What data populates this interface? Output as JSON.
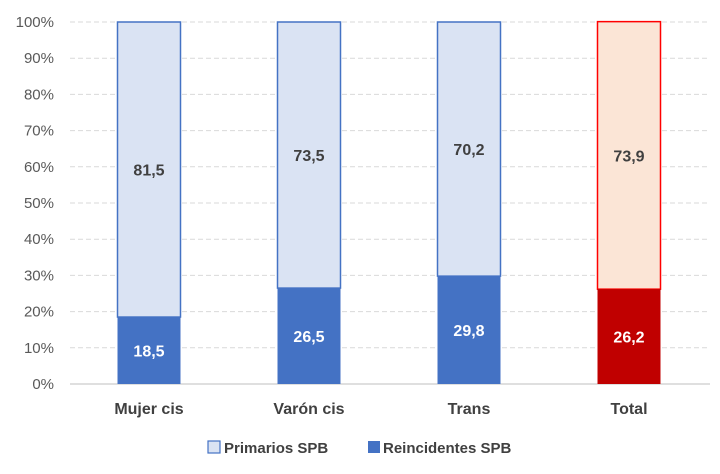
{
  "chart_data": {
    "type": "bar",
    "stacked": true,
    "percent": true,
    "title": "",
    "xlabel": "",
    "ylabel": "",
    "ylim": [
      0,
      100
    ],
    "yticks": [
      "0%",
      "10%",
      "20%",
      "30%",
      "40%",
      "50%",
      "60%",
      "70%",
      "80%",
      "90%",
      "100%"
    ],
    "categories": [
      "Mujer cis",
      "Varón cis",
      "Trans",
      "Total"
    ],
    "series": [
      {
        "name": "Reincidentes SPB",
        "values": [
          18.5,
          26.5,
          29.8,
          26.2
        ],
        "labels": [
          "18,5",
          "26,5",
          "29,8",
          "26,2"
        ],
        "color": "#4472c4",
        "highlight_color": "#c00000"
      },
      {
        "name": "Primarios SPB",
        "values": [
          81.5,
          73.5,
          70.2,
          73.9
        ],
        "labels": [
          "81,5",
          "73,5",
          "70,2",
          "73,9"
        ],
        "color": "#dae3f3",
        "border": "#4472c4",
        "highlight_color": "#fbe5d6",
        "highlight_border": "#ff0000"
      }
    ],
    "highlighted_category": "Total",
    "grid": true,
    "legend": "bottom",
    "legend_order": [
      "Primarios SPB",
      "Reincidentes SPB"
    ]
  }
}
